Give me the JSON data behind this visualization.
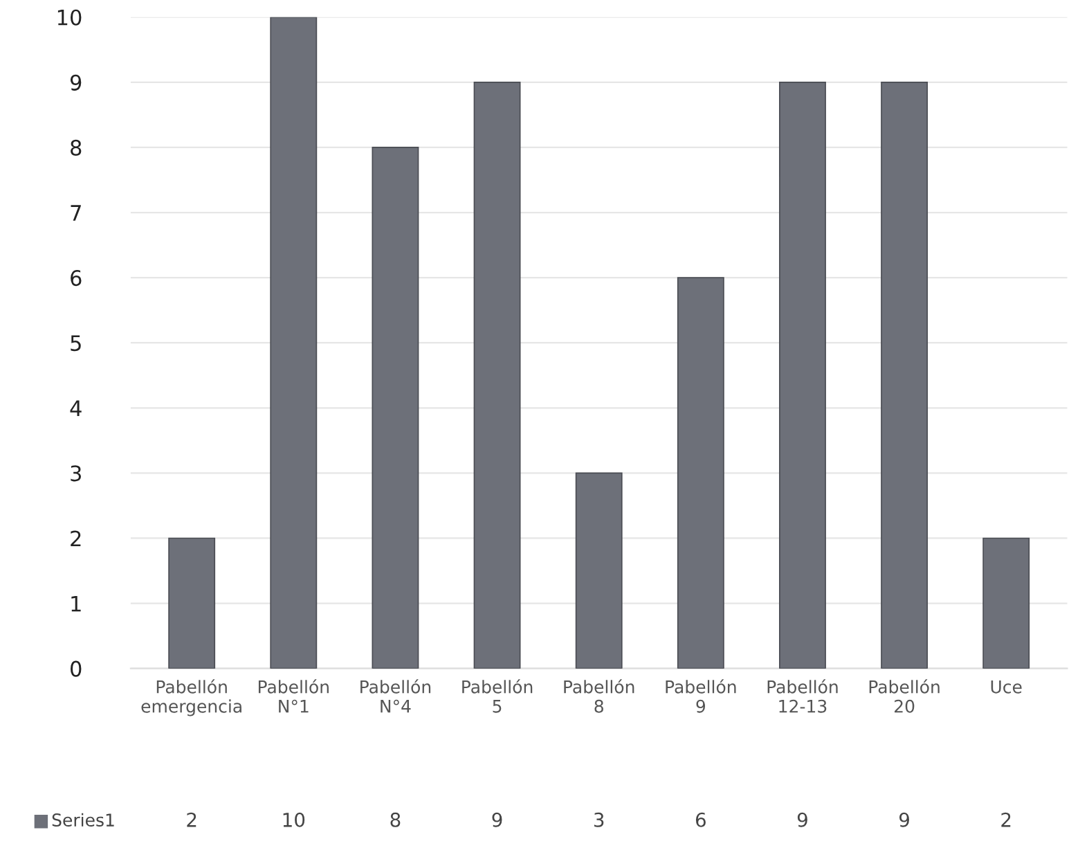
{
  "chart_data": {
    "type": "bar",
    "categories": [
      "Pabellón emergencia",
      "Pabellón N°1",
      "Pabellón N°4",
      "Pabellón 5",
      "Pabellón 8",
      "Pabellón 9",
      "Pabellón 12-13",
      "Pabellón 20",
      "Uce"
    ],
    "series": [
      {
        "name": "Series1",
        "color": "#6d7079",
        "values": [
          2,
          10,
          8,
          9,
          3,
          6,
          9,
          9,
          2
        ]
      }
    ],
    "ylim": [
      0,
      10
    ],
    "yticks": [
      0,
      1,
      2,
      3,
      4,
      5,
      6,
      7,
      8,
      9,
      10
    ],
    "grid": "y",
    "legend": "bottom",
    "data_labels": true
  }
}
